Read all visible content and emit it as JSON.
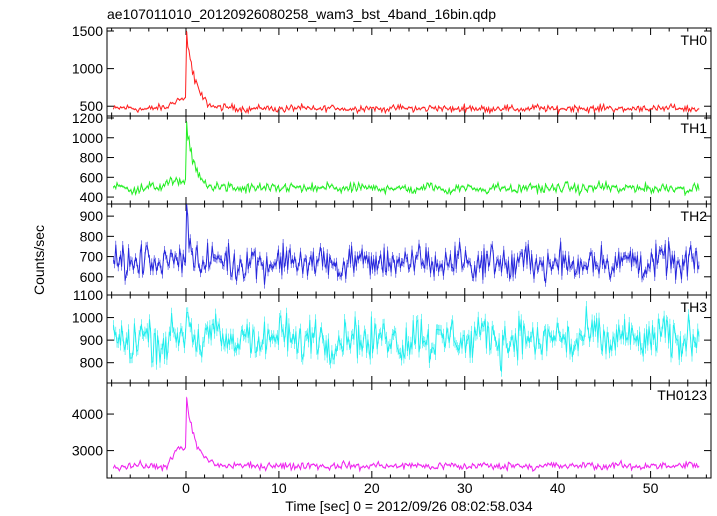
{
  "title": "ae107011010_20120926080258_wam3_bst_4band_16bin.qdp",
  "ylabel": "Counts/sec",
  "xlabel": "Time [sec] 0 = 2012/09/26 08:02:58.034",
  "chart_data": {
    "type": "line",
    "x_range": [
      -8.5,
      56.5
    ],
    "x_ticks": [
      0,
      10,
      20,
      30,
      40,
      50
    ],
    "panels": [
      {
        "name": "TH0",
        "color": "#ff2020",
        "ylim": [
          370,
          1540
        ],
        "yticks": [
          500,
          1000,
          1500
        ],
        "model": {
          "baseline": 470,
          "noise": 32,
          "pre_level": 600,
          "pre_start": -2.2,
          "peak": 1540,
          "decay": 0.9
        }
      },
      {
        "name": "TH1",
        "color": "#22ee22",
        "ylim": [
          330,
          1220
        ],
        "yticks": [
          400,
          600,
          800,
          1000,
          1200
        ],
        "model": {
          "baseline": 490,
          "noise": 35,
          "pre_level": 560,
          "pre_start": -3.0,
          "peak": 1200,
          "decay": 0.8
        }
      },
      {
        "name": "TH2",
        "color": "#2828dd",
        "ylim": [
          510,
          960
        ],
        "yticks": [
          600,
          700,
          800,
          900
        ],
        "model": {
          "baseline": 670,
          "noise": 55,
          "pre_level": 690,
          "pre_start": -3.0,
          "peak": 940,
          "decay": 0.5
        }
      },
      {
        "name": "TH3",
        "color": "#22eeee",
        "ylim": [
          710,
          1100
        ],
        "yticks": [
          800,
          900,
          1000,
          1100
        ],
        "model": {
          "baseline": 905,
          "noise": 65,
          "pre_level": 905,
          "pre_start": -3.0,
          "peak": 1100,
          "decay": 0.4
        }
      },
      {
        "name": "TH0123",
        "color": "#ee22ee",
        "ylim": [
          2250,
          4850
        ],
        "yticks": [
          3000,
          4000
        ],
        "model": {
          "baseline": 2580,
          "noise": 70,
          "pre_level": 3050,
          "pre_start": -2.0,
          "peak": 4700,
          "decay": 0.9
        }
      }
    ]
  }
}
